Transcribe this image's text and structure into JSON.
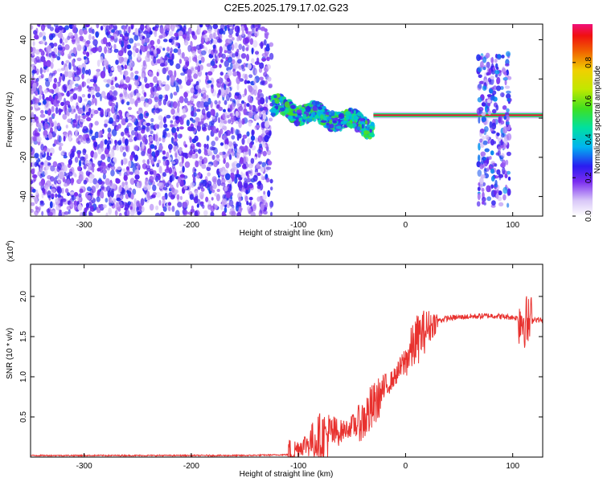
{
  "title": "C2E5.2025.179.17.02.G23",
  "colors": {
    "snr_line": "#e8312e",
    "spec_dark": "#5a00e0",
    "spec_light": "#d7c4f7"
  },
  "chart_data": [
    {
      "type": "heatmap",
      "xlabel": "Height of straight line (km)",
      "ylabel": "Frequency (Hz)",
      "xlim": [
        -350,
        128
      ],
      "ylim": [
        -50,
        48
      ],
      "xticks": [
        "-300",
        "-200",
        "-100",
        "0",
        "100"
      ],
      "yticks": [
        "-40",
        "-20",
        "0",
        "20",
        "40"
      ],
      "colorbar": {
        "label": "Normalized spectral amplitude",
        "range": [
          0,
          1
        ],
        "ticks": [
          "0.0",
          "0.2",
          "0.4",
          "0.6",
          "0.8"
        ]
      },
      "regions": [
        {
          "name": "noise",
          "x": [
            -350,
            -125
          ],
          "freq": [
            -50,
            48
          ],
          "amplitude": 0.25
        },
        {
          "name": "transition",
          "x": [
            -125,
            -30
          ],
          "freq": [
            -8,
            8
          ],
          "amplitude": 0.55
        },
        {
          "name": "carrier",
          "x": [
            -30,
            128
          ],
          "freq": [
            0.5,
            2.5
          ],
          "amplitude": 1.0
        },
        {
          "name": "burst",
          "x": [
            68,
            97
          ],
          "freq": [
            -45,
            33
          ],
          "amplitude": 0.3
        }
      ]
    },
    {
      "type": "line",
      "xlabel": "Height of straight line (km)",
      "ylabel": "SNR (10 * v/v)",
      "multiplier": "(x10",
      "multiplier_exp": "4",
      "multiplier_close": ")",
      "xlim": [
        -350,
        128
      ],
      "ylim": [
        0,
        2.4
      ],
      "xticks": [
        "-300",
        "-200",
        "-100",
        "0",
        "100"
      ],
      "yticks": [
        "0.5",
        "1.0",
        "1.5",
        "2.0"
      ],
      "series": [
        {
          "x": [
            -350,
            -300,
            -250,
            -200,
            -150,
            -110,
            -100,
            -80,
            -60,
            -40,
            -30,
            -20,
            -10,
            0,
            10,
            20,
            30,
            40,
            60,
            80,
            100,
            110,
            115,
            120,
            128
          ],
          "values": [
            0.02,
            0.02,
            0.02,
            0.02,
            0.02,
            0.03,
            0.12,
            0.25,
            0.32,
            0.45,
            0.62,
            0.85,
            1.0,
            1.2,
            1.45,
            1.6,
            1.7,
            1.73,
            1.75,
            1.76,
            1.74,
            1.72,
            1.65,
            1.72,
            1.7
          ]
        }
      ]
    }
  ]
}
